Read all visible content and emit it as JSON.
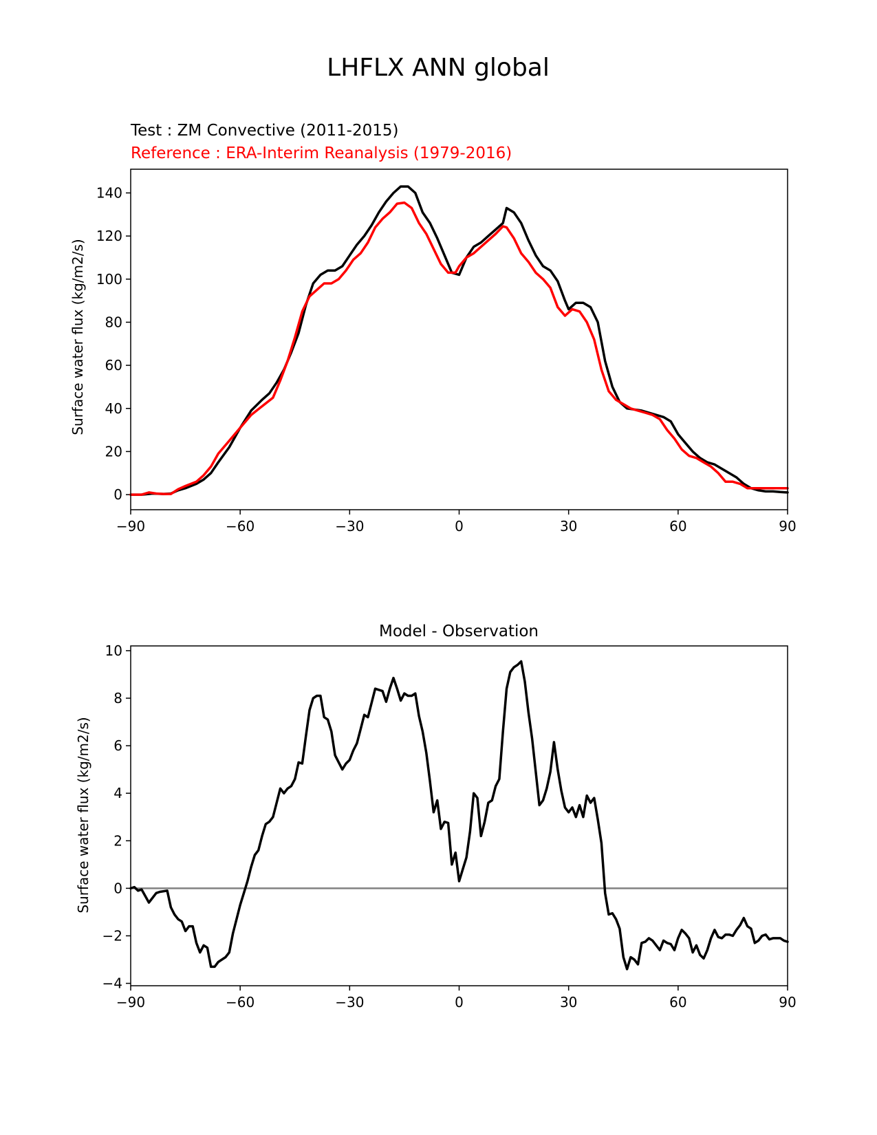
{
  "figure": {
    "title": "LHFLX ANN global"
  },
  "chart_data": [
    {
      "type": "line",
      "test_label": "Test : ZM Convective (2011-2015)",
      "reference_label": "Reference : ERA-Interim Reanalysis (1979-2016)",
      "ylabel": "Surface water flux (kg/m2/s)",
      "xlabel": "",
      "xlim": [
        -90,
        90
      ],
      "ylim": [
        -7,
        151
      ],
      "xticks": [
        -90,
        -60,
        -30,
        0,
        30,
        60,
        90
      ],
      "xtick_labels": [
        "−90",
        "−60",
        "−30",
        "0",
        "30",
        "60",
        "90"
      ],
      "yticks": [
        0,
        20,
        40,
        60,
        80,
        100,
        120,
        140
      ],
      "ytick_labels": [
        "0",
        "20",
        "40",
        "60",
        "80",
        "100",
        "120",
        "140"
      ],
      "series": [
        {
          "name": "Test",
          "color": "#000000",
          "x": [
            -90,
            -87,
            -84,
            -81,
            -79,
            -77,
            -75,
            -72,
            -70,
            -68,
            -66,
            -63,
            -60,
            -57,
            -54,
            -52,
            -50,
            -48,
            -46,
            -44,
            -42,
            -40,
            -38,
            -36,
            -34,
            -32,
            -30,
            -28,
            -26,
            -24,
            -22,
            -20,
            -18,
            -16,
            -14,
            -12,
            -10,
            -8,
            -6,
            -4,
            -2,
            0,
            2,
            4,
            6,
            8,
            10,
            12,
            13,
            15,
            17,
            19,
            21,
            23,
            25,
            27,
            29,
            30,
            32,
            34,
            36,
            38,
            40,
            42,
            44,
            46,
            48,
            50,
            52,
            54,
            56,
            58,
            60,
            62,
            64,
            66,
            68,
            70,
            72,
            74,
            76,
            78,
            80,
            82,
            84,
            86,
            88,
            90
          ],
          "values": [
            0,
            0,
            0.5,
            0.3,
            0.5,
            2,
            3,
            5,
            7,
            10,
            15,
            22,
            31,
            39,
            44,
            47,
            52,
            58,
            66,
            75,
            88,
            98,
            102,
            104,
            104,
            106,
            111,
            116,
            120,
            125,
            131,
            136,
            140,
            143,
            143,
            140,
            131,
            126,
            119,
            111,
            103,
            102,
            110,
            115,
            117,
            120,
            123,
            126,
            133,
            131,
            126,
            118,
            111,
            106,
            104,
            99,
            90,
            86,
            89,
            89,
            87,
            80,
            62,
            50,
            43,
            40,
            39.5,
            39,
            38,
            37,
            36,
            34,
            28,
            24,
            20,
            17,
            15,
            14,
            12,
            10,
            8,
            5,
            3,
            2,
            1.5,
            1.5,
            1.2,
            1
          ],
          "legend": "Test : ZM Convective (2011-2015)"
        },
        {
          "name": "Reference",
          "color": "#ff0000",
          "x": [
            -90,
            -87,
            -85,
            -83,
            -81,
            -79,
            -77,
            -75,
            -72,
            -70,
            -68,
            -66,
            -63,
            -60,
            -57,
            -54,
            -51,
            -49,
            -47,
            -45,
            -43,
            -41,
            -39,
            -37,
            -35,
            -33,
            -31,
            -29,
            -27,
            -25,
            -23,
            -21,
            -19,
            -17,
            -15,
            -13,
            -11,
            -9,
            -7,
            -5,
            -3,
            -1,
            0,
            2,
            4,
            6,
            8,
            10,
            12,
            13,
            15,
            17,
            19,
            21,
            23,
            25,
            27,
            29,
            31,
            33,
            35,
            37,
            39,
            41,
            43,
            45,
            47,
            49,
            51,
            53,
            55,
            57,
            59,
            61,
            63,
            65,
            67,
            69,
            71,
            73,
            75,
            77,
            79,
            81,
            83,
            85,
            87,
            90
          ],
          "values": [
            0,
            0,
            1,
            0.5,
            0.3,
            0.3,
            2.5,
            4,
            6,
            9,
            13,
            19,
            25,
            31,
            37,
            41,
            45,
            53,
            62,
            73,
            85,
            92,
            95,
            98,
            98,
            100,
            104,
            109,
            112,
            117,
            124,
            128,
            131,
            135,
            135.5,
            133,
            126,
            121,
            114,
            107,
            103,
            103,
            106,
            110,
            112,
            115,
            118,
            121,
            124.5,
            124,
            119,
            112,
            108,
            103,
            100,
            96,
            87,
            83,
            86,
            85,
            80,
            72,
            58,
            48,
            44,
            42,
            40,
            39,
            38,
            37,
            35,
            30,
            26,
            21,
            18,
            17,
            15,
            13,
            10,
            6,
            6,
            5,
            3,
            3,
            3,
            3,
            3,
            3
          ],
          "legend": "Reference : ERA-Interim Reanalysis (1979-2016)"
        }
      ]
    },
    {
      "type": "line",
      "title": "Model - Observation",
      "ylabel": "Surface water flux (kg/m2/s)",
      "xlabel": "",
      "xlim": [
        -90,
        90
      ],
      "ylim": [
        -4.1,
        10.2
      ],
      "xticks": [
        -90,
        -60,
        -30,
        0,
        30,
        60,
        90
      ],
      "xtick_labels": [
        "−90",
        "−60",
        "−30",
        "0",
        "30",
        "60",
        "90"
      ],
      "yticks": [
        -4,
        -2,
        0,
        2,
        4,
        6,
        8,
        10
      ],
      "ytick_labels": [
        "−4",
        "−2",
        "0",
        "2",
        "4",
        "6",
        "8",
        "10"
      ],
      "zero_line": {
        "y": 0,
        "color": "#808080"
      },
      "series": [
        {
          "name": "Difference",
          "color": "#000000",
          "x": [
            -90,
            -89,
            -88,
            -87,
            -85,
            -83,
            -82,
            -80,
            -79,
            -78,
            -77,
            -76,
            -75,
            -74,
            -73,
            -72,
            -71,
            -70,
            -69,
            -68,
            -67,
            -66,
            -64,
            -63,
            -62,
            -61,
            -60,
            -59,
            -58,
            -57,
            -56,
            -55,
            -54,
            -53,
            -52,
            -51,
            -50,
            -49,
            -48,
            -47,
            -46,
            -45,
            -44,
            -43,
            -42,
            -41,
            -40,
            -39,
            -38,
            -37,
            -36,
            -35,
            -34,
            -33,
            -32,
            -31,
            -30,
            -29,
            -28,
            -27,
            -26,
            -25,
            -24,
            -23,
            -22,
            -21,
            -20,
            -19,
            -18,
            -17,
            -16,
            -15,
            -14,
            -13,
            -12,
            -11,
            -10,
            -9,
            -8,
            -7,
            -6,
            -5,
            -4,
            -3,
            -2,
            -1,
            0,
            1,
            2,
            3,
            4,
            5,
            6,
            7,
            8,
            9,
            10,
            11,
            12,
            13,
            14,
            15,
            16,
            17,
            18,
            19,
            20,
            21,
            22,
            23,
            24,
            25,
            26,
            27,
            28,
            29,
            30,
            31,
            32,
            33,
            34,
            35,
            36,
            37,
            38,
            39,
            40,
            41,
            42,
            43,
            44,
            45,
            46,
            47,
            48,
            49,
            50,
            51,
            52,
            53,
            54,
            55,
            56,
            57,
            58,
            59,
            60,
            61,
            62,
            63,
            64,
            65,
            66,
            67,
            68,
            69,
            70,
            71,
            72,
            73,
            74,
            75,
            76,
            77,
            78,
            79,
            80,
            81,
            82,
            83,
            84,
            85,
            86,
            87,
            88,
            89,
            90
          ],
          "values": [
            0,
            0.05,
            -0.1,
            -0.05,
            -0.6,
            -0.2,
            -0.15,
            -0.1,
            -0.8,
            -1.1,
            -1.3,
            -1.4,
            -1.8,
            -1.6,
            -1.6,
            -2.3,
            -2.7,
            -2.4,
            -2.5,
            -3.3,
            -3.3,
            -3.1,
            -2.9,
            -2.7,
            -1.9,
            -1.3,
            -0.7,
            -0.2,
            0.3,
            0.9,
            1.4,
            1.6,
            2.2,
            2.7,
            2.8,
            3.0,
            3.6,
            4.2,
            4.0,
            4.2,
            4.3,
            4.6,
            5.3,
            5.25,
            6.4,
            7.5,
            8.0,
            8.1,
            8.1,
            7.2,
            7.1,
            6.6,
            5.6,
            5.3,
            5.0,
            5.25,
            5.4,
            5.8,
            6.1,
            6.7,
            7.3,
            7.2,
            7.8,
            8.4,
            8.35,
            8.3,
            7.85,
            8.4,
            8.85,
            8.4,
            7.9,
            8.2,
            8.1,
            8.1,
            8.2,
            7.25,
            6.6,
            5.7,
            4.5,
            3.2,
            3.7,
            2.5,
            2.8,
            2.75,
            1.0,
            1.5,
            0.3,
            0.8,
            1.3,
            2.4,
            4.0,
            3.8,
            2.2,
            2.8,
            3.6,
            3.7,
            4.3,
            4.6,
            6.6,
            8.4,
            9.1,
            9.3,
            9.4,
            9.55,
            8.7,
            7.4,
            6.3,
            4.9,
            3.5,
            3.7,
            4.2,
            4.9,
            6.15,
            5.0,
            4.1,
            3.4,
            3.2,
            3.4,
            3.0,
            3.5,
            3.0,
            3.9,
            3.6,
            3.8,
            2.9,
            1.9,
            -0.2,
            -1.1,
            -1.05,
            -1.3,
            -1.7,
            -2.9,
            -3.4,
            -2.9,
            -3.0,
            -3.2,
            -2.3,
            -2.25,
            -2.1,
            -2.2,
            -2.4,
            -2.6,
            -2.2,
            -2.3,
            -2.35,
            -2.6,
            -2.1,
            -1.75,
            -1.9,
            -2.1,
            -2.7,
            -2.4,
            -2.8,
            -2.95,
            -2.6,
            -2.1,
            -1.75,
            -2.05,
            -2.1,
            -1.95,
            -1.95,
            -2.0,
            -1.75,
            -1.55,
            -1.25,
            -1.6,
            -1.7,
            -2.3,
            -2.2,
            -2.0,
            -1.95,
            -2.15,
            -2.1,
            -2.1,
            -2.1,
            -2.2,
            -2.25
          ]
        }
      ]
    }
  ]
}
